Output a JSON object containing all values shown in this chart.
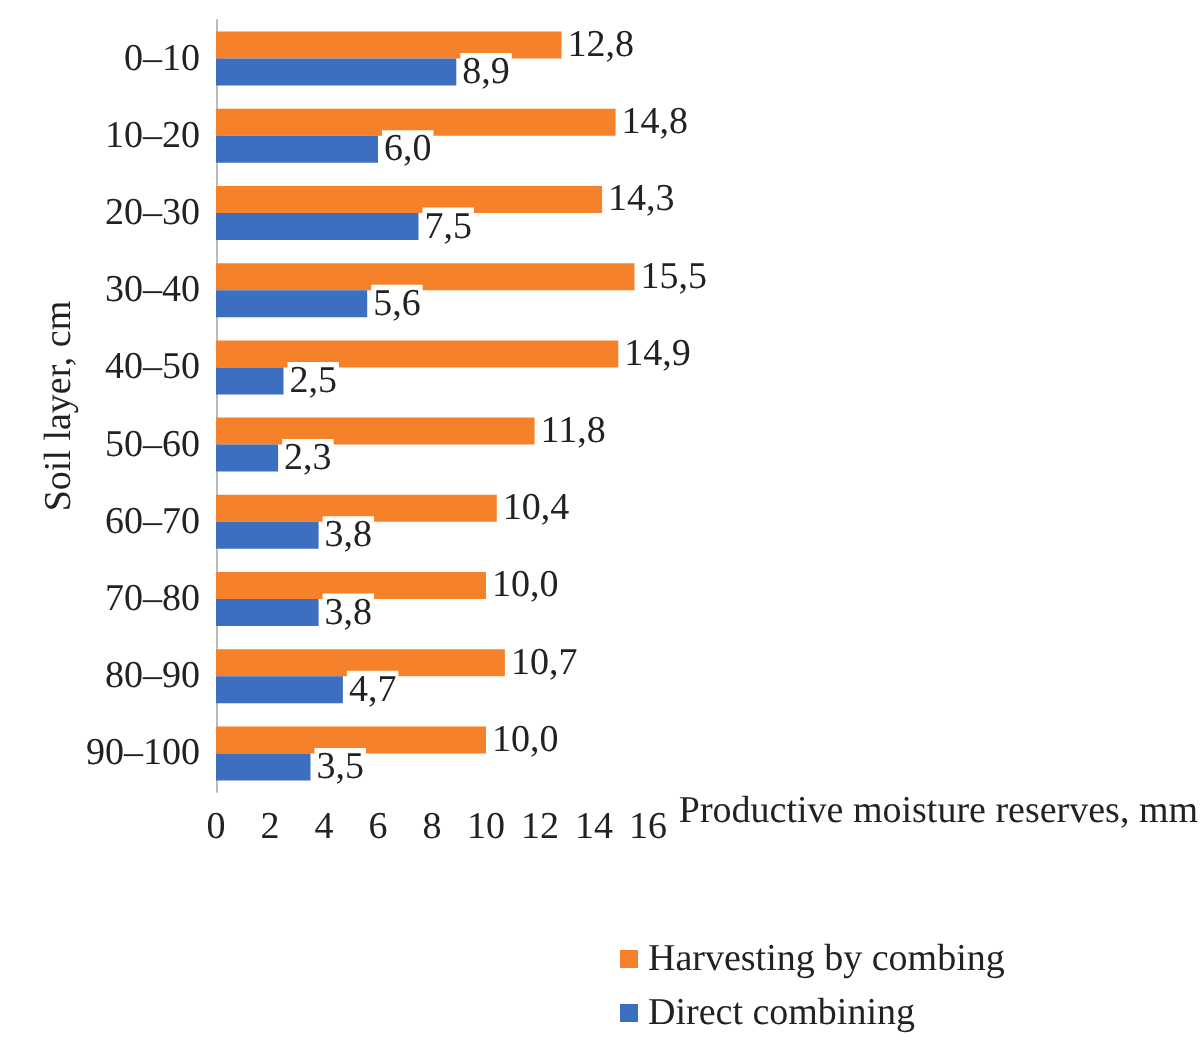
{
  "chart_data": {
    "type": "bar",
    "orientation": "horizontal",
    "xlabel": "Productive moisture reserves, mm",
    "ylabel": "Soil layer, cm",
    "categories": [
      "0–10",
      "10–20",
      "20–30",
      "30–40",
      "40–50",
      "50–60",
      "60–70",
      "70–80",
      "80–90",
      "90–100"
    ],
    "series": [
      {
        "name": "Harvesting by combing",
        "color": "#f5822a",
        "values": [
          12.8,
          14.8,
          14.3,
          15.5,
          14.9,
          11.8,
          10.4,
          10.0,
          10.7,
          10.0
        ],
        "value_labels": [
          "12,8",
          "14,8",
          "14,3",
          "15,5",
          "14,9",
          "11,8",
          "10,4",
          "10,0",
          "10,7",
          "10,0"
        ]
      },
      {
        "name": "Direct combining",
        "color": "#3c6fc0",
        "values": [
          8.9,
          6.0,
          7.5,
          5.6,
          2.5,
          2.3,
          3.8,
          3.8,
          4.7,
          3.5
        ],
        "value_labels": [
          "8,9",
          "6,0",
          "7,5",
          "5,6",
          "2,5",
          "2,3",
          "3,8",
          "3,8",
          "4,7",
          "3,5"
        ]
      }
    ],
    "xlim": [
      0,
      16
    ],
    "xticks": [
      0,
      2,
      4,
      6,
      8,
      10,
      12,
      14,
      16
    ],
    "grid": false,
    "legend": "bottom"
  }
}
